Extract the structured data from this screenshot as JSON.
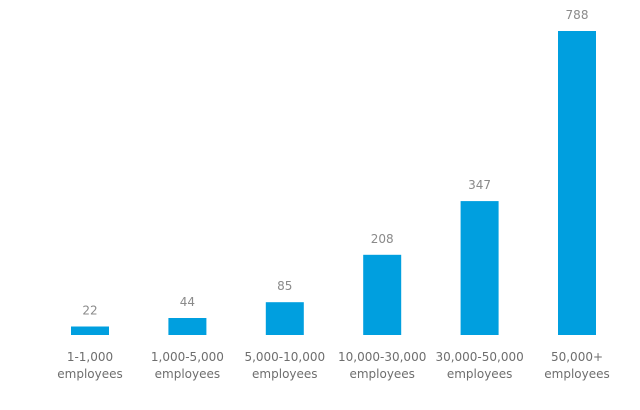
{
  "chart_data": {
    "type": "bar",
    "categories": [
      [
        "1-1,000",
        "employees"
      ],
      [
        "1,000-5,000",
        "employees"
      ],
      [
        "5,000-10,000",
        "employees"
      ],
      [
        "10,000-30,000",
        "employees"
      ],
      [
        "30,000-50,000",
        "employees"
      ],
      [
        "50,000+",
        "employees"
      ]
    ],
    "values": [
      22,
      44,
      85,
      208,
      347,
      788
    ],
    "value_labels": [
      "22",
      "44",
      "85",
      "208",
      "347",
      "788"
    ],
    "title": "",
    "xlabel": "",
    "ylabel": "",
    "ylim": [
      0,
      788
    ],
    "grid": false,
    "legend": "none",
    "bar_color": "#009fdf"
  }
}
